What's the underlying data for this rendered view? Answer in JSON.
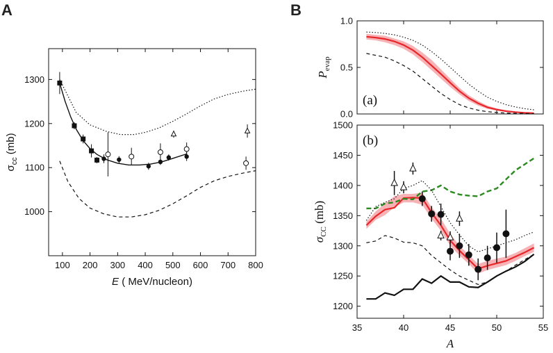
{
  "chart_data": [
    {
      "type": "scatter",
      "panel": "A",
      "xlabel_prefix": "E",
      "xlabel_rest": " ( MeV/nucleon)",
      "ylabel_main": "σ",
      "ylabel_sub": "cc",
      "ylabel_unit": " (mb)",
      "xlim": [
        50,
        800
      ],
      "ylim": [
        900,
        1370
      ],
      "xticks": [
        100,
        200,
        300,
        400,
        500,
        600,
        700,
        800
      ],
      "yticks": [
        1000,
        1100,
        1200,
        1300
      ],
      "series": [
        {
          "name": "filled squares",
          "marker": "square-filled",
          "x": [
            90,
            143,
            175,
            205,
            225
          ],
          "y": [
            1292,
            1195,
            1165,
            1138,
            1117
          ],
          "err": [
            25,
            8,
            10,
            15,
            7
          ]
        },
        {
          "name": "filled circles",
          "marker": "circle-filled",
          "x": [
            250,
            305,
            412,
            455,
            485,
            550
          ],
          "y": [
            1120,
            1118,
            1103,
            1113,
            1123,
            1125
          ],
          "err": [
            10,
            8,
            8,
            7,
            7,
            10
          ]
        },
        {
          "name": "open circles",
          "marker": "circle-open",
          "x": [
            265,
            350,
            455,
            550,
            765
          ],
          "y": [
            1130,
            1125,
            1135,
            1142,
            1110
          ],
          "err": [
            50,
            20,
            20,
            15,
            15
          ]
        },
        {
          "name": "open triangles",
          "marker": "triangle-open",
          "x": [
            503,
            770
          ],
          "y": [
            1176,
            1183
          ],
          "err": [
            8,
            15
          ]
        }
      ],
      "curves": [
        {
          "name": "solid fit",
          "style": "solid",
          "x": [
            90,
            110,
            130,
            150,
            175,
            200,
            225,
            260,
            300,
            340,
            380,
            420,
            460,
            500,
            550
          ],
          "y": [
            1292,
            1250,
            1215,
            1187,
            1161,
            1143,
            1130,
            1118,
            1110,
            1106,
            1106,
            1108,
            1113,
            1121,
            1131
          ]
        },
        {
          "name": "dotted",
          "style": "dotted",
          "x": [
            90,
            150,
            200,
            260,
            310,
            360,
            400,
            450,
            500,
            550,
            600,
            650,
            700,
            750,
            800
          ],
          "y": [
            1300,
            1225,
            1197,
            1182,
            1175,
            1175,
            1180,
            1190,
            1205,
            1222,
            1240,
            1256,
            1266,
            1273,
            1278
          ]
        },
        {
          "name": "dashed",
          "style": "dashed",
          "x": [
            90,
            120,
            160,
            200,
            250,
            300,
            350,
            400,
            450,
            500,
            550,
            600,
            650,
            700,
            750,
            800
          ],
          "y": [
            1115,
            1068,
            1030,
            1008,
            995,
            988,
            988,
            993,
            1003,
            1018,
            1036,
            1055,
            1070,
            1080,
            1087,
            1093
          ]
        }
      ]
    },
    {
      "type": "line",
      "panel": "B (a)",
      "sublabel": "(a)",
      "ylabel_main": "P",
      "ylabel_sub": "evap",
      "xlim": [
        35,
        55
      ],
      "ylim": [
        0,
        1.0
      ],
      "yticks": [
        0.0,
        0.5,
        1.0
      ],
      "band": {
        "x": [
          36,
          37,
          38,
          39,
          40,
          41,
          42,
          43,
          44,
          45,
          46,
          47,
          48,
          49,
          50,
          51,
          52,
          53,
          54
        ],
        "lower": [
          0.8,
          0.79,
          0.77,
          0.74,
          0.7,
          0.64,
          0.56,
          0.47,
          0.38,
          0.29,
          0.21,
          0.14,
          0.09,
          0.055,
          0.035,
          0.022,
          0.014,
          0.009,
          0.006
        ],
        "upper": [
          0.86,
          0.85,
          0.84,
          0.81,
          0.78,
          0.73,
          0.66,
          0.58,
          0.48,
          0.38,
          0.28,
          0.2,
          0.14,
          0.09,
          0.06,
          0.04,
          0.026,
          0.018,
          0.012
        ]
      },
      "series": [
        {
          "name": "central",
          "style": "solid-red",
          "x": [
            36,
            37,
            38,
            39,
            40,
            41,
            42,
            43,
            44,
            45,
            46,
            47,
            48,
            49,
            50,
            51,
            52,
            53,
            54
          ],
          "y": [
            0.83,
            0.82,
            0.805,
            0.78,
            0.74,
            0.685,
            0.61,
            0.52,
            0.43,
            0.335,
            0.245,
            0.17,
            0.115,
            0.072,
            0.047,
            0.03,
            0.02,
            0.013,
            0.009
          ]
        },
        {
          "name": "dotted",
          "style": "dotted",
          "x": [
            36,
            37,
            38,
            39,
            40,
            41,
            42,
            43,
            44,
            45,
            46,
            47,
            48,
            49,
            50,
            51,
            52,
            53,
            54
          ],
          "y": [
            0.88,
            0.875,
            0.865,
            0.85,
            0.825,
            0.79,
            0.74,
            0.67,
            0.59,
            0.5,
            0.41,
            0.32,
            0.245,
            0.18,
            0.135,
            0.1,
            0.075,
            0.057,
            0.044
          ]
        },
        {
          "name": "dashed",
          "style": "dashed",
          "x": [
            36,
            37,
            38,
            39,
            40,
            41,
            42,
            43,
            44,
            45,
            46,
            47,
            48,
            49,
            50,
            51,
            52,
            53,
            54
          ],
          "y": [
            0.65,
            0.63,
            0.61,
            0.57,
            0.52,
            0.46,
            0.38,
            0.3,
            0.22,
            0.155,
            0.1,
            0.065,
            0.04,
            0.025,
            0.016,
            0.01,
            0.007,
            0.005,
            0.003
          ]
        }
      ]
    },
    {
      "type": "line",
      "panel": "B (b)",
      "sublabel": "(b)",
      "xlabel": "A",
      "ylabel_main": "σ",
      "ylabel_sub": "CC",
      "ylabel_unit": " (mb)",
      "xlim": [
        35,
        55
      ],
      "ylim": [
        1180,
        1500
      ],
      "xticks": [
        35,
        40,
        45,
        50,
        55
      ],
      "yticks": [
        1200,
        1250,
        1300,
        1350,
        1400,
        1450,
        1500
      ],
      "band": {
        "x": [
          36,
          37,
          38,
          39,
          40,
          41,
          42,
          43,
          44,
          45,
          46,
          47,
          48,
          49,
          50,
          51,
          52,
          53,
          54
        ],
        "lower": [
          1328,
          1343,
          1351,
          1364,
          1372,
          1372,
          1368,
          1345,
          1325,
          1300,
          1284,
          1270,
          1254,
          1260,
          1264,
          1268,
          1275,
          1283,
          1290
        ],
        "upper": [
          1340,
          1357,
          1370,
          1382,
          1386,
          1386,
          1388,
          1364,
          1345,
          1320,
          1300,
          1285,
          1270,
          1275,
          1279,
          1282,
          1288,
          1296,
          1304
        ]
      },
      "series": [
        {
          "name": "central red",
          "style": "solid-red",
          "x": [
            36,
            37,
            38,
            39,
            40,
            41,
            42,
            43,
            44,
            45,
            46,
            47,
            48,
            49,
            50,
            51,
            52,
            53,
            54
          ],
          "y": [
            1334,
            1349,
            1360,
            1363,
            1379,
            1380,
            1379,
            1355,
            1334,
            1309,
            1292,
            1277,
            1262,
            1267,
            1271,
            1275,
            1282,
            1289,
            1297
          ]
        },
        {
          "name": "green dashed",
          "style": "dashed-green",
          "x": [
            36,
            37,
            38,
            39,
            40,
            41,
            42,
            43,
            44,
            45,
            46,
            47,
            48,
            49,
            50,
            51,
            52,
            53,
            54
          ],
          "y": [
            1362,
            1362,
            1370,
            1372,
            1378,
            1377,
            1390,
            1392,
            1400,
            1390,
            1385,
            1383,
            1382,
            1390,
            1395,
            1410,
            1425,
            1435,
            1445
          ]
        },
        {
          "name": "dotted",
          "style": "dotted",
          "x": [
            36,
            37,
            38,
            39,
            40,
            41,
            42,
            43,
            44,
            45,
            46,
            47,
            48,
            49,
            50,
            51,
            52,
            53,
            54
          ],
          "y": [
            1342,
            1365,
            1372,
            1378,
            1395,
            1400,
            1408,
            1392,
            1365,
            1338,
            1318,
            1300,
            1290,
            1295,
            1300,
            1305,
            1310,
            1317,
            1323
          ]
        },
        {
          "name": "dashed",
          "style": "dashed",
          "x": [
            36,
            37,
            38,
            39,
            40,
            41,
            42,
            43,
            44,
            45,
            46,
            47,
            48,
            49,
            50,
            51,
            52,
            53,
            54
          ],
          "y": [
            1305,
            1308,
            1317,
            1313,
            1306,
            1305,
            1300,
            1284,
            1272,
            1260,
            1250,
            1243,
            1236,
            1240,
            1250,
            1258,
            1268,
            1277,
            1286
          ]
        },
        {
          "name": "black solid",
          "style": "solid-black",
          "x": [
            36,
            37,
            38,
            39,
            40,
            41,
            42,
            43,
            44,
            45,
            46,
            47,
            48,
            49,
            50,
            51,
            52,
            53,
            54
          ],
          "y": [
            1212,
            1212,
            1222,
            1218,
            1228,
            1228,
            1245,
            1238,
            1250,
            1240,
            1240,
            1232,
            1231,
            1240,
            1250,
            1258,
            1265,
            1274,
            1286
          ]
        }
      ],
      "points": [
        {
          "name": "filled circles",
          "marker": "circle-filled",
          "x": [
            42,
            43,
            44,
            45,
            46,
            47,
            48,
            49,
            50,
            51
          ],
          "y": [
            1378,
            1353,
            1352,
            1291,
            1300,
            1285,
            1261,
            1280,
            1297,
            1320
          ],
          "err": [
            12,
            13,
            18,
            15,
            20,
            18,
            18,
            20,
            25,
            40
          ]
        },
        {
          "name": "open triangles",
          "marker": "triangle-open",
          "x": [
            39,
            40,
            41,
            44,
            45,
            46
          ],
          "y": [
            1404,
            1397,
            1428,
            1317,
            1314,
            1345
          ],
          "err": [
            20,
            10,
            10,
            8,
            10,
            12
          ]
        }
      ]
    }
  ],
  "labels": {
    "panel_a": "A",
    "panel_b": "B"
  },
  "colors": {
    "red": "#e8262a",
    "band": "#f4a5a8",
    "green": "#2a8a1e",
    "black": "#111111"
  }
}
